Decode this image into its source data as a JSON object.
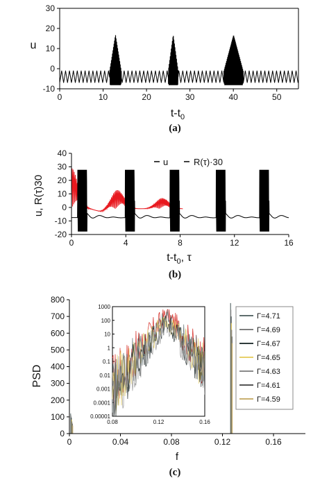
{
  "chart_data": [
    {
      "id": "a",
      "type": "line",
      "caption": "(a)",
      "xlabel": "t-t",
      "xlabel_sub": "0",
      "ylabel": "u",
      "xlim": [
        0,
        55
      ],
      "ylim": [
        -10,
        30
      ],
      "xticks": [
        "0",
        "10",
        "20",
        "30",
        "40",
        "50"
      ],
      "xtick_values": [
        0,
        10,
        20,
        30,
        40,
        50
      ],
      "yticks": [
        "-10",
        "0",
        "10",
        "20",
        "30"
      ],
      "ytick_values": [
        -10,
        0,
        10,
        20,
        30
      ],
      "grid": false,
      "series": [
        {
          "color": "#000000",
          "baseline": {
            "period": 0.9,
            "min": -7,
            "max": -1
          },
          "bursts": [
            {
              "start": 11.5,
              "end": 14.2,
              "peak": 20
            },
            {
              "start": 25.0,
              "end": 27.3,
              "peak": 20
            },
            {
              "start": 37.8,
              "end": 42.3,
              "peak": 20
            }
          ]
        }
      ]
    },
    {
      "id": "b",
      "type": "line",
      "caption": "(b)",
      "xlabel": "t-t",
      "xlabel_sub": "0",
      "xlabel_tail": ", τ",
      "ylabel": "u, R(τ)30",
      "xlim": [
        0,
        16
      ],
      "ylim": [
        -20,
        40
      ],
      "xticks": [
        "0",
        "4",
        "8",
        "12",
        "16"
      ],
      "xtick_values": [
        0,
        4,
        8,
        12,
        16
      ],
      "yticks": [
        "-20",
        "-10",
        "0",
        "10",
        "20",
        "30",
        "40"
      ],
      "ytick_values": [
        -20,
        -10,
        0,
        10,
        20,
        30,
        40
      ],
      "grid": false,
      "legend": {
        "position": "top-right",
        "entries": [
          "u",
          "R(τ)·30"
        ]
      },
      "series": [
        {
          "name": "u",
          "color": "#000000",
          "burst_centers": [
            0.8,
            4.3,
            7.6,
            11.0,
            14.2
          ]
        },
        {
          "name": "R(τ)·30",
          "color": "#e8191f",
          "lobes": [
            {
              "center": 0,
              "peak": 30
            },
            {
              "center": 3.4,
              "peak": 14
            },
            {
              "center": 6.7,
              "peak": 8
            }
          ]
        }
      ]
    },
    {
      "id": "c",
      "type": "line",
      "caption": "(c)",
      "xlabel": "f",
      "ylabel": "PSD",
      "xlim": [
        0,
        0.185
      ],
      "ylim": [
        0,
        800
      ],
      "xticks": [
        "0",
        "0.04",
        "0.08",
        "0.12",
        "0.16"
      ],
      "xtick_values": [
        0,
        0.04,
        0.08,
        0.12,
        0.16
      ],
      "yticks": [
        "0",
        "100",
        "200",
        "300",
        "400",
        "500",
        "600",
        "700",
        "800"
      ],
      "ytick_values": [
        0,
        100,
        200,
        300,
        400,
        500,
        600,
        700,
        800
      ],
      "grid": false,
      "peak": {
        "f": 0.127,
        "value": 780
      },
      "legend": {
        "position": "right",
        "entries": [
          "Γ=4.71",
          "Γ=4.69",
          "Γ=4.67",
          "Γ=4.65",
          "Γ=4.63",
          "Γ=4.61",
          "Γ=4.59"
        ],
        "colors": [
          "#5f6e6e",
          "#7f7f7f",
          "#2f3b3b",
          "#e8d06a",
          "#8a8a8a",
          "#555555",
          "#c9b070"
        ]
      },
      "inset": {
        "type": "line",
        "scale": "log",
        "xlim": [
          0.08,
          0.16
        ],
        "ylim": [
          1e-05,
          1000
        ],
        "xticks": [
          "0.08",
          "0.12",
          "0.16"
        ],
        "xtick_values": [
          0.08,
          0.12,
          0.16
        ],
        "yticks": [
          "1000",
          "100",
          "10",
          "1",
          "0.1",
          "0.01",
          "0.001",
          "0.0001",
          "0.00001"
        ],
        "ytick_values": [
          1000,
          100,
          10,
          1,
          0.1,
          0.01,
          0.001,
          0.0001,
          1e-05
        ],
        "peak_f": 0.127
      }
    }
  ]
}
